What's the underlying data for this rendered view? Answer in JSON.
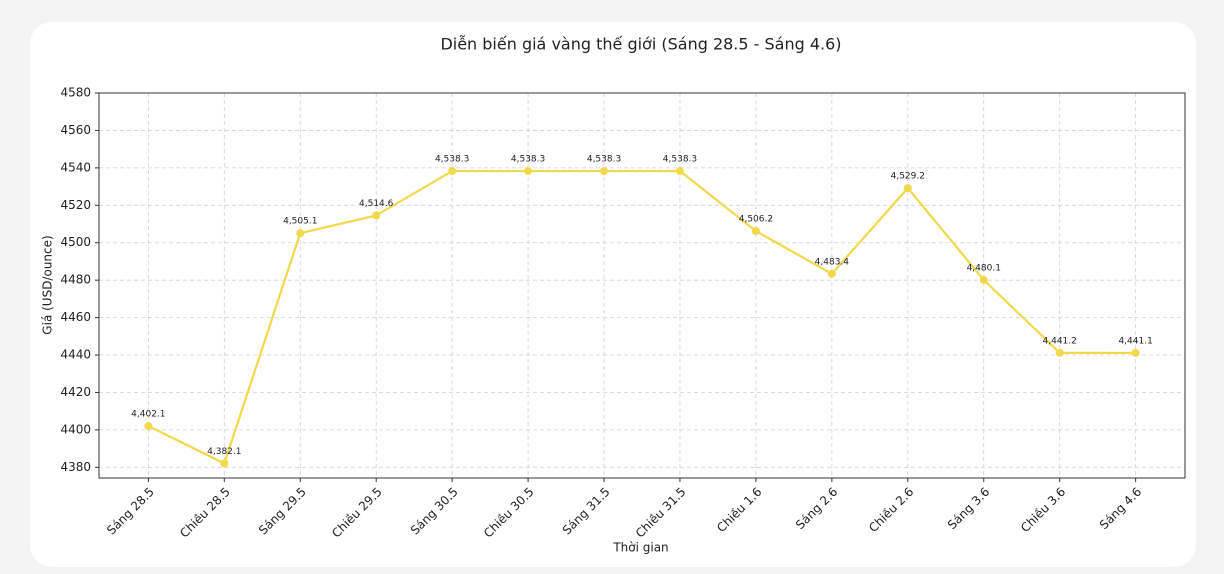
{
  "chart_data": {
    "type": "line",
    "title": "Diễn biến giá vàng thế giới (Sáng 28.5 - Sáng 4.6)",
    "x_label": "Thời gian",
    "y_label": "Giá (USD/ounce)",
    "categories": [
      "Sáng 28.5",
      "Chiều 28.5",
      "Sáng 29.5",
      "Chiều 29.5",
      "Sáng 30.5",
      "Chiều 30.5",
      "Sáng 31.5",
      "Chiều 31.5",
      "Chiều 1.6",
      "Sáng 2.6",
      "Chiều 2.6",
      "Sáng 3.6",
      "Chiều 3.6",
      "Sáng 4.6"
    ],
    "values": [
      4402.1,
      4382.1,
      4505.1,
      4514.6,
      4538.3,
      4538.3,
      4538.3,
      4538.3,
      4506.2,
      4483.4,
      4529.2,
      4480.1,
      4441.2,
      4441.1
    ],
    "value_labels": [
      "4,402.1",
      "4,382.1",
      "4,505.1",
      "4,514.6",
      "4,538.3",
      "4,538.3",
      "4,538.3",
      "4,538.3",
      "4,506.2",
      "4,483.4",
      "4,529.2",
      "4,480.1",
      "4,441.2",
      "4,441.1"
    ],
    "color": "#f2d84b",
    "ylim": [
      4374.3,
      4580
    ],
    "yticks": [
      4380,
      4400,
      4420,
      4440,
      4460,
      4480,
      4500,
      4520,
      4540,
      4560,
      4580
    ],
    "grid": true
  }
}
